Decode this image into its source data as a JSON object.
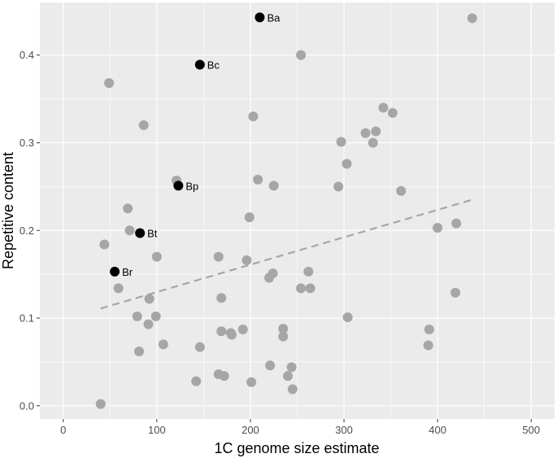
{
  "chart_data": {
    "type": "scatter",
    "title": "",
    "xlabel": "1C genome size estimate",
    "ylabel": "Repetitive content",
    "xlim": [
      -25,
      525
    ],
    "ylim": [
      -0.015,
      0.46
    ],
    "xticks": [
      0,
      100,
      200,
      300,
      400,
      500
    ],
    "xtick_labels": [
      "0",
      "100",
      "200",
      "300",
      "400",
      "500"
    ],
    "yticks": [
      0.0,
      0.1,
      0.2,
      0.3,
      0.4
    ],
    "ytick_labels": [
      "0.0",
      "0.1",
      "0.2",
      "0.3",
      "0.4"
    ],
    "grid": true,
    "legend": "none",
    "colors": {
      "panel": "#ebebeb",
      "grid": "#ffffff",
      "point": "#a6a6a6",
      "highlight": "#000000",
      "trend": "#a6a6a6"
    },
    "series": [
      {
        "points": [
          [
            40,
            0.002
          ],
          [
            44,
            0.184
          ],
          [
            49,
            0.368
          ],
          [
            59,
            0.134
          ],
          [
            69,
            0.225
          ],
          [
            71,
            0.2
          ],
          [
            79,
            0.102
          ],
          [
            81,
            0.062
          ],
          [
            86,
            0.32
          ],
          [
            91,
            0.093
          ],
          [
            92,
            0.122
          ],
          [
            99,
            0.102
          ],
          [
            100,
            0.17
          ],
          [
            107,
            0.07
          ],
          [
            121,
            0.257
          ],
          [
            142,
            0.028
          ],
          [
            146,
            0.067
          ],
          [
            166,
            0.17
          ],
          [
            166,
            0.036
          ],
          [
            169,
            0.123
          ],
          [
            169,
            0.085
          ],
          [
            172,
            0.034
          ],
          [
            179,
            0.083
          ],
          [
            180,
            0.081
          ],
          [
            192,
            0.087
          ],
          [
            196,
            0.166
          ],
          [
            199,
            0.215
          ],
          [
            201,
            0.027
          ],
          [
            203,
            0.33
          ],
          [
            208,
            0.258
          ],
          [
            220,
            0.146
          ],
          [
            221,
            0.046
          ],
          [
            224,
            0.151
          ],
          [
            225,
            0.251
          ],
          [
            235,
            0.088
          ],
          [
            235,
            0.079
          ],
          [
            240,
            0.034
          ],
          [
            244,
            0.044
          ],
          [
            245,
            0.019
          ],
          [
            254,
            0.4
          ],
          [
            254,
            0.134
          ],
          [
            262,
            0.153
          ],
          [
            264,
            0.134
          ],
          [
            294,
            0.25
          ],
          [
            297,
            0.301
          ],
          [
            303,
            0.276
          ],
          [
            304,
            0.101
          ],
          [
            323,
            0.311
          ],
          [
            331,
            0.3
          ],
          [
            334,
            0.313
          ],
          [
            342,
            0.34
          ],
          [
            352,
            0.334
          ],
          [
            361,
            0.245
          ],
          [
            390,
            0.069
          ],
          [
            391,
            0.087
          ],
          [
            400,
            0.203
          ],
          [
            419,
            0.129
          ],
          [
            420,
            0.208
          ],
          [
            437,
            0.442
          ]
        ]
      },
      {
        "points": [
          {
            "x": 210,
            "y": 0.443,
            "label": "Ba"
          },
          {
            "x": 146,
            "y": 0.389,
            "label": "Bc"
          },
          {
            "x": 123,
            "y": 0.251,
            "label": "Bp"
          },
          {
            "x": 82,
            "y": 0.197,
            "label": "Bt"
          },
          {
            "x": 55,
            "y": 0.153,
            "label": "Br"
          }
        ]
      }
    ],
    "trend_line": {
      "style": "dashed",
      "x": [
        40,
        437
      ],
      "y": [
        0.111,
        0.235
      ]
    }
  }
}
